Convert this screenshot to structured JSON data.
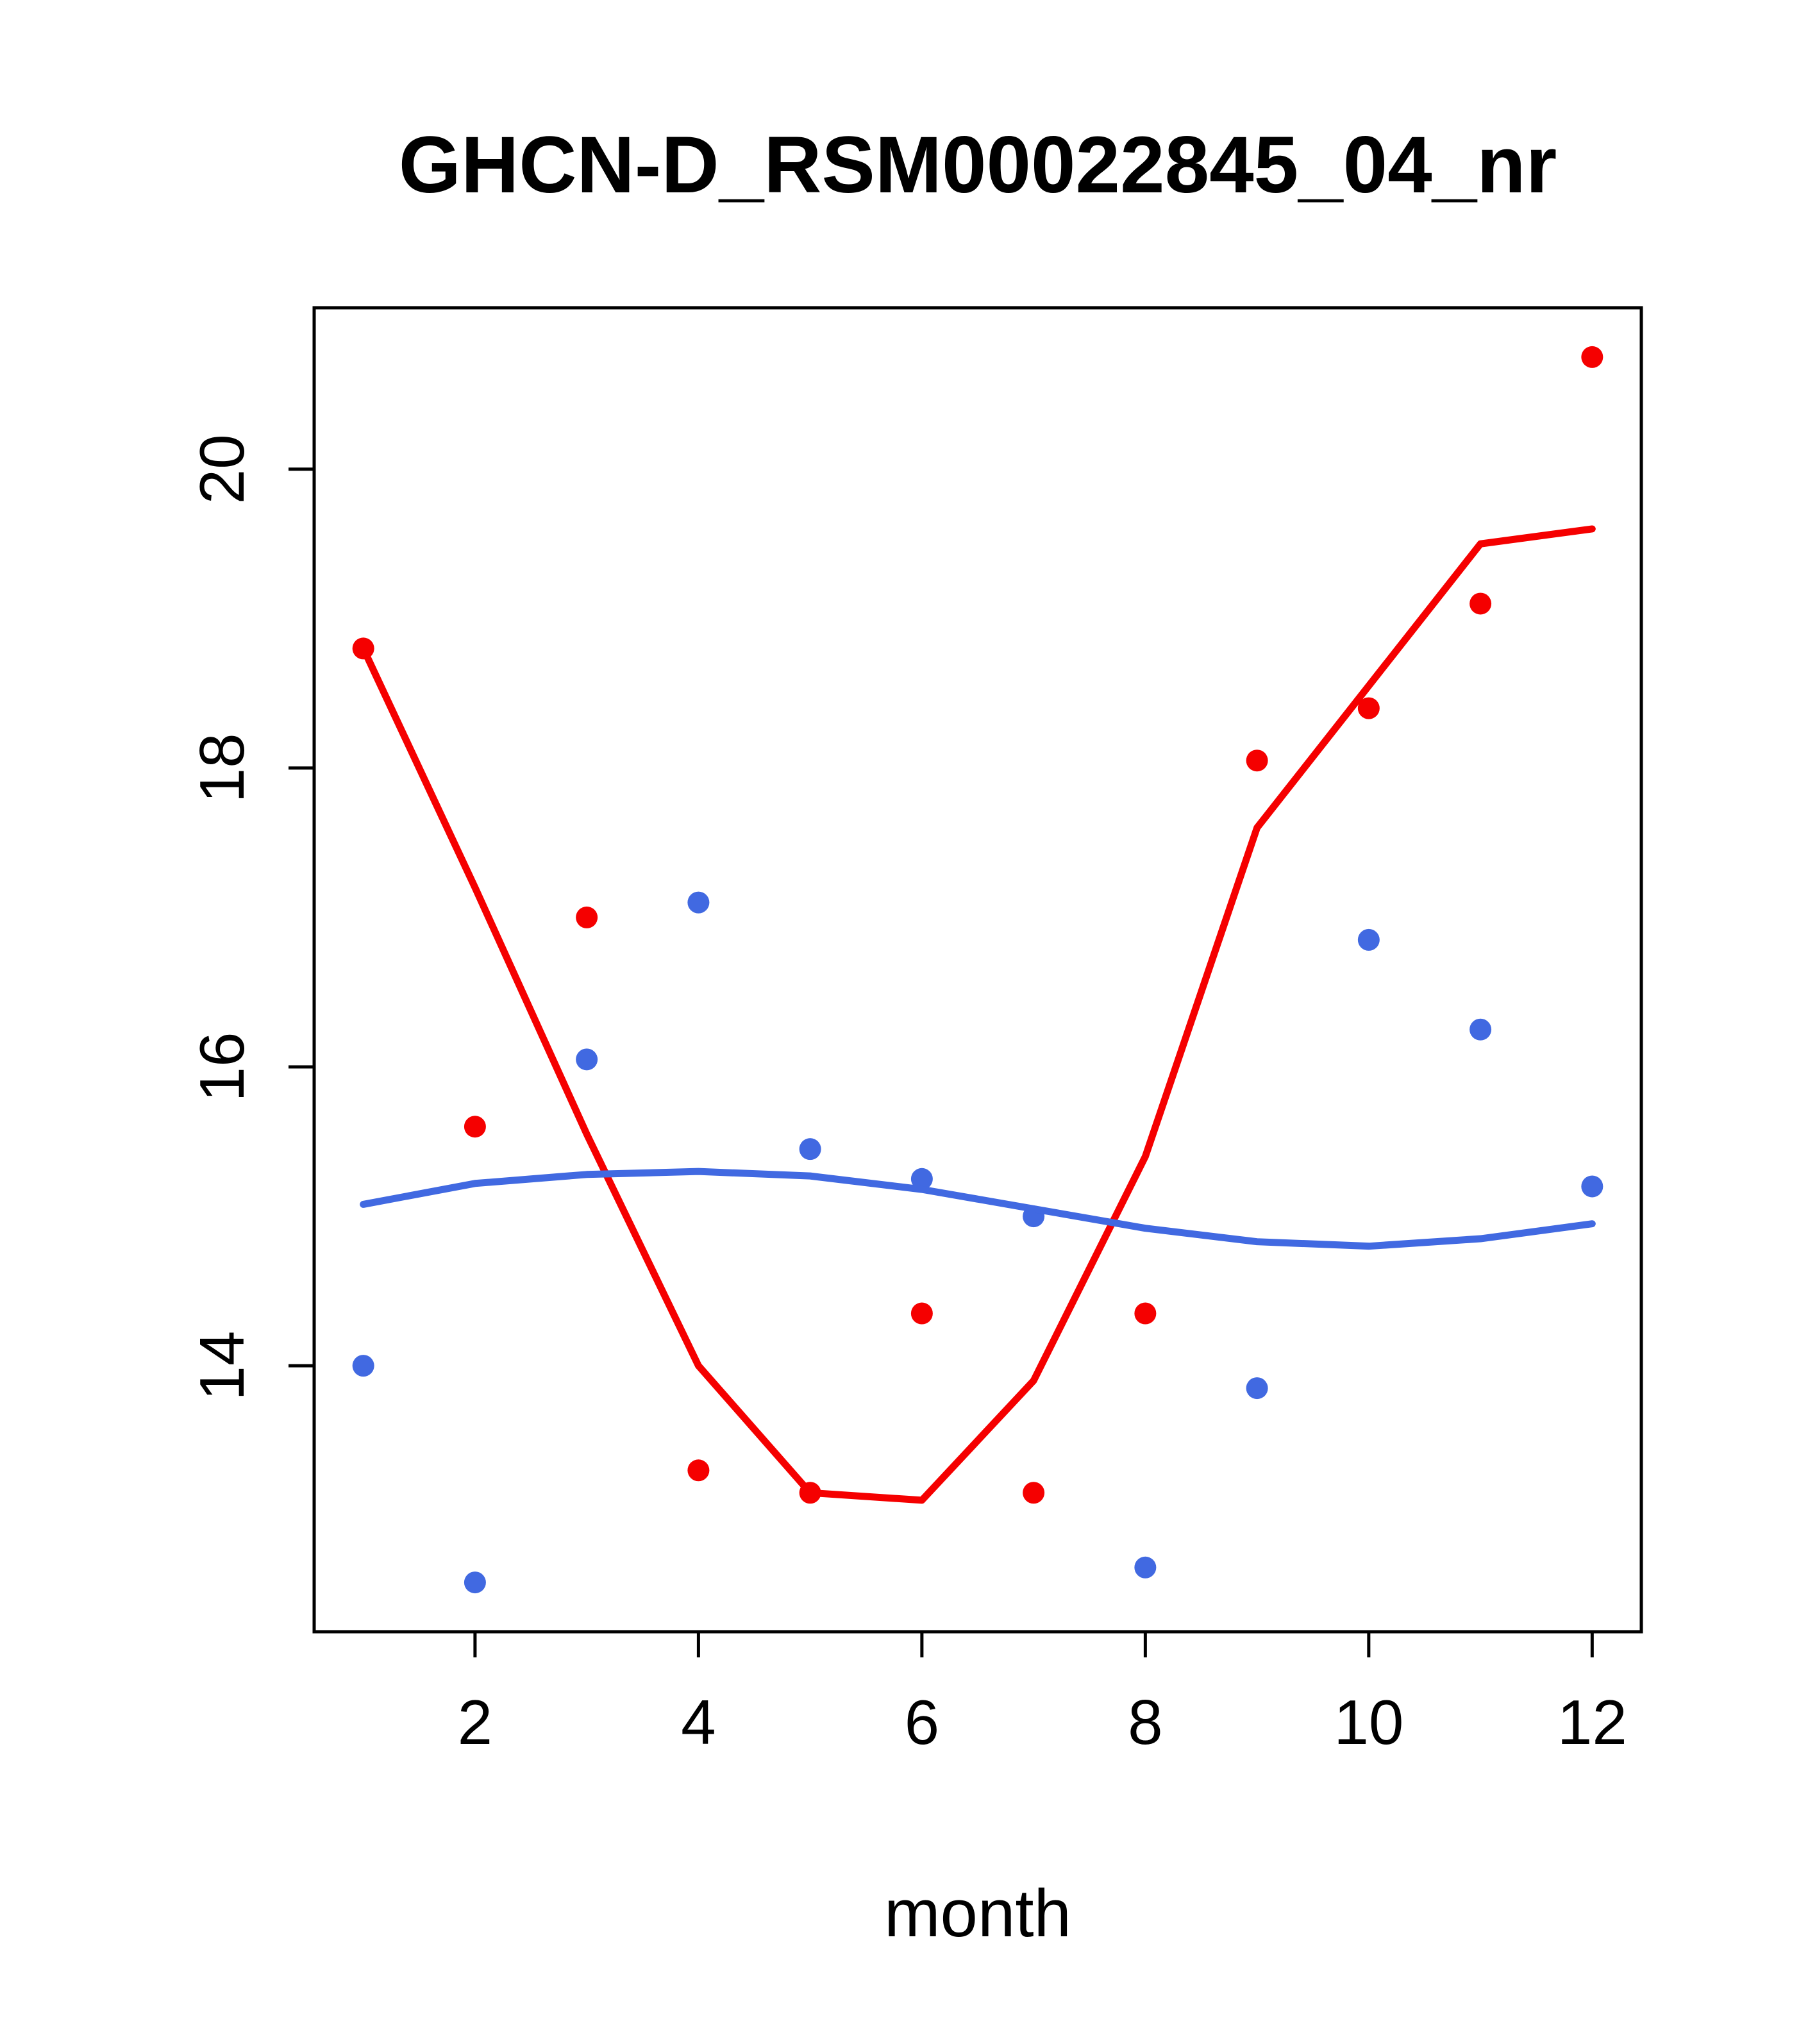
{
  "title": "GHCN-D_RSM00022845_04_nr",
  "chart_data": {
    "type": "scatter",
    "title": "GHCN-D_RSM00022845_04_nr",
    "xlabel": "month",
    "ylabel": "",
    "x": [
      1,
      2,
      3,
      4,
      5,
      6,
      7,
      8,
      9,
      10,
      11,
      12
    ],
    "xticks": [
      2,
      4,
      6,
      8,
      10,
      12
    ],
    "yticks": [
      14,
      16,
      18,
      20
    ],
    "xlim": [
      0.56,
      12.44
    ],
    "ylim": [
      12.22,
      21.08
    ],
    "grid": false,
    "legend": "none",
    "colors": {
      "red": "#f50000",
      "blue": "#4169e1"
    },
    "series": [
      {
        "name": "red-points",
        "kind": "points",
        "color": "#f50000",
        "values": [
          18.8,
          15.6,
          17.0,
          13.3,
          13.15,
          14.35,
          13.15,
          14.35,
          18.05,
          18.4,
          19.1,
          20.75
        ]
      },
      {
        "name": "red-smooth-line",
        "kind": "line",
        "color": "#f50000",
        "values": [
          18.8,
          17.2,
          15.55,
          14.0,
          13.15,
          13.1,
          13.9,
          15.4,
          17.6,
          18.55,
          19.5,
          19.6
        ]
      },
      {
        "name": "blue-points",
        "kind": "points",
        "color": "#4169e1",
        "values": [
          14.0,
          12.55,
          16.05,
          17.1,
          15.45,
          15.25,
          15.0,
          12.65,
          13.85,
          16.85,
          16.25,
          15.2
        ]
      },
      {
        "name": "blue-smooth-line",
        "kind": "line",
        "color": "#4169e1",
        "values": [
          15.08,
          15.22,
          15.28,
          15.3,
          15.27,
          15.18,
          15.05,
          14.92,
          14.83,
          14.8,
          14.85,
          14.95
        ]
      }
    ]
  }
}
